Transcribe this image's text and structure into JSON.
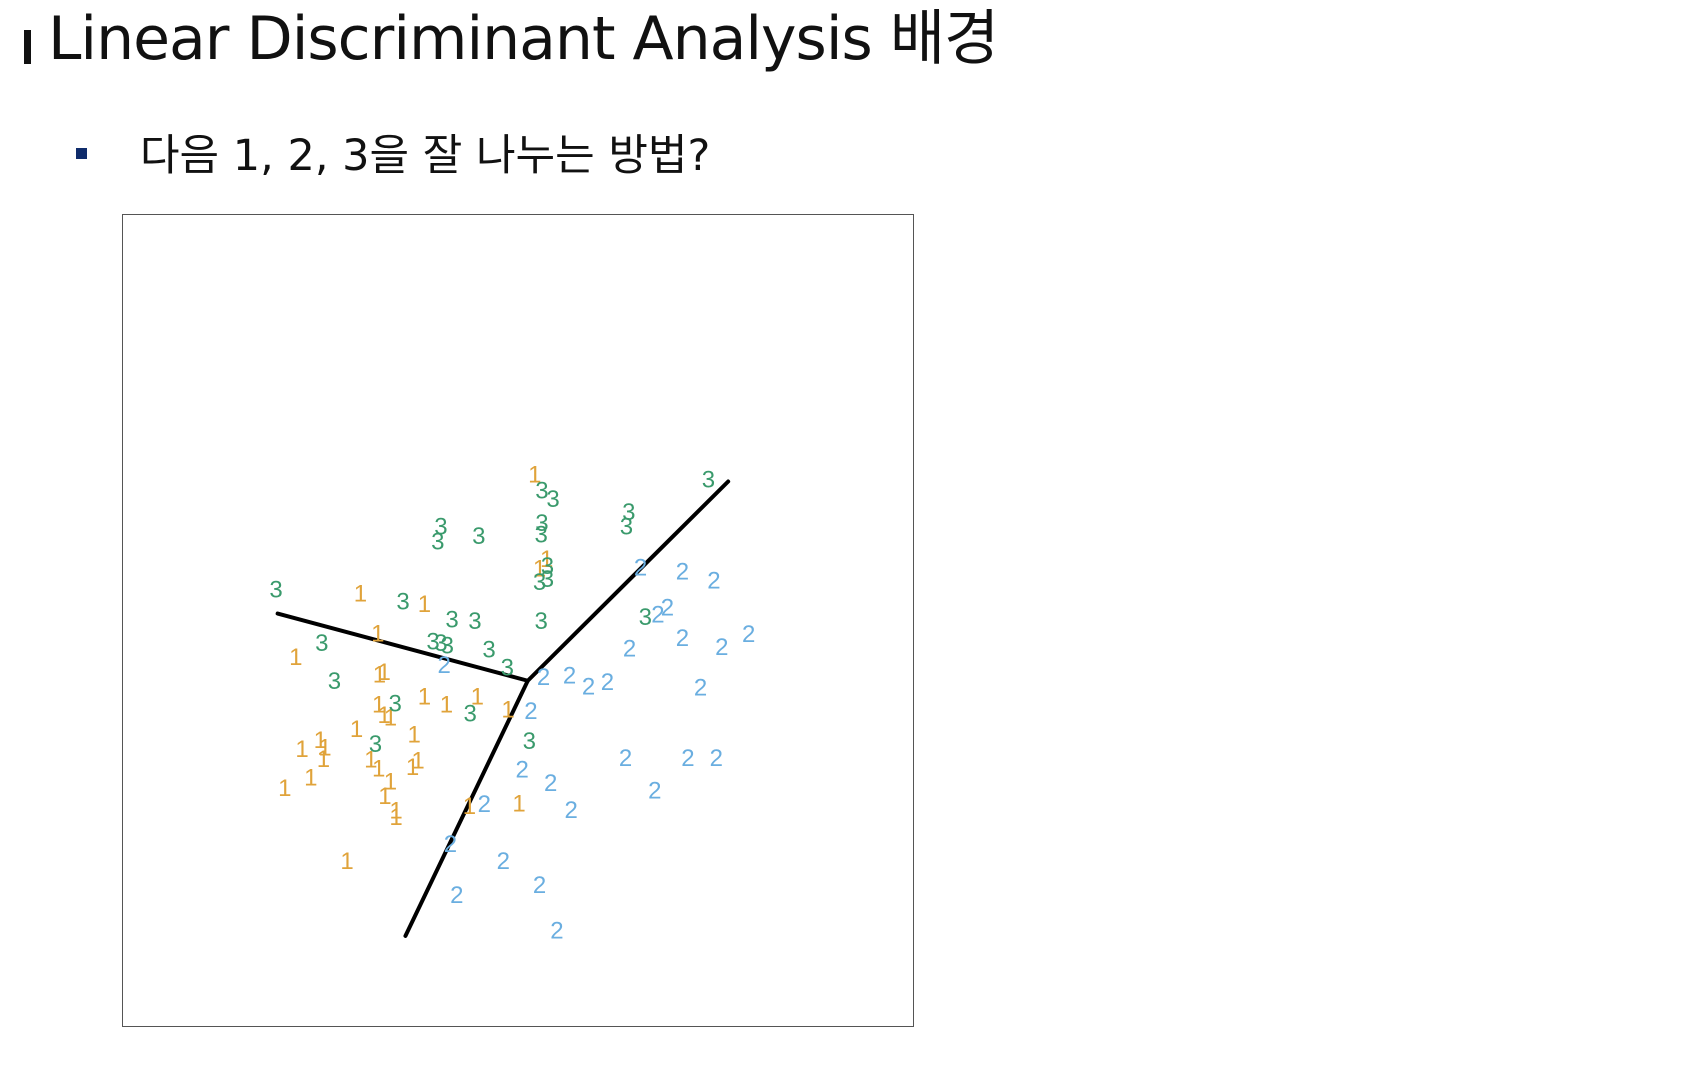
{
  "page": {
    "title": "Linear Discriminant Analysis 배경",
    "bullet": "다음 1, 2, 3을 잘 나누는 방법?"
  },
  "colors": {
    "class_1": "#e0a33a",
    "class_2": "#6aaee0",
    "class_3": "#3a9a6c",
    "boundary": "#000000",
    "bullet": "#0f2c6b"
  },
  "chart_data": {
    "type": "scatter",
    "title": "",
    "xlabel": "",
    "ylabel": "",
    "xlim": [
      0,
      100
    ],
    "ylim": [
      0,
      100
    ],
    "grid": false,
    "axes_visible": false,
    "legend": "none",
    "marker_style": "class label digit",
    "series": [
      {
        "name": "1",
        "label": "1",
        "color": "#e0a33a",
        "points": [
          [
            52.2,
            67.9
          ],
          [
            30.1,
            53.2
          ],
          [
            53.7,
            57.5
          ],
          [
            52.8,
            56.3
          ],
          [
            38.2,
            51.9
          ],
          [
            32.3,
            48.3
          ],
          [
            21.9,
            45.4
          ],
          [
            32.5,
            43.2
          ],
          [
            33.1,
            43.5
          ],
          [
            44.9,
            40.5
          ],
          [
            38.2,
            40.5
          ],
          [
            32.4,
            39.5
          ],
          [
            41.0,
            39.5
          ],
          [
            48.8,
            38.9
          ],
          [
            33.9,
            37.9
          ],
          [
            33.1,
            38.2
          ],
          [
            29.6,
            36.5
          ],
          [
            36.9,
            35.8
          ],
          [
            25.0,
            35.1
          ],
          [
            25.6,
            34.2
          ],
          [
            22.7,
            34.0
          ],
          [
            25.4,
            32.8
          ],
          [
            31.4,
            32.7
          ],
          [
            37.4,
            32.6
          ],
          [
            36.7,
            31.8
          ],
          [
            32.4,
            31.6
          ],
          [
            20.5,
            29.2
          ],
          [
            23.8,
            30.5
          ],
          [
            33.9,
            30.0
          ],
          [
            33.2,
            28.2
          ],
          [
            34.6,
            26.4
          ],
          [
            43.9,
            27.0
          ],
          [
            50.2,
            27.3
          ],
          [
            34.6,
            25.6
          ],
          [
            28.4,
            20.2
          ]
        ]
      },
      {
        "name": "2",
        "label": "2",
        "color": "#6aaee0",
        "points": [
          [
            65.6,
            56.4
          ],
          [
            70.9,
            55.9
          ],
          [
            74.9,
            54.8
          ],
          [
            69.0,
            51.5
          ],
          [
            67.8,
            50.6
          ],
          [
            79.3,
            48.2
          ],
          [
            70.9,
            47.7
          ],
          [
            75.9,
            46.6
          ],
          [
            64.2,
            46.4
          ],
          [
            40.7,
            44.4
          ],
          [
            53.3,
            42.9
          ],
          [
            56.6,
            43.1
          ],
          [
            59.0,
            41.7
          ],
          [
            61.4,
            42.3
          ],
          [
            73.2,
            41.6
          ],
          [
            51.7,
            38.7
          ],
          [
            63.7,
            32.9
          ],
          [
            71.6,
            32.9
          ],
          [
            75.2,
            32.9
          ],
          [
            50.6,
            31.5
          ],
          [
            54.2,
            29.8
          ],
          [
            67.4,
            28.9
          ],
          [
            45.8,
            27.2
          ],
          [
            56.8,
            26.5
          ],
          [
            41.5,
            22.3
          ],
          [
            48.2,
            20.2
          ],
          [
            52.8,
            17.2
          ],
          [
            42.3,
            16.0
          ],
          [
            55.0,
            11.6
          ]
        ]
      },
      {
        "name": "3",
        "label": "3",
        "color": "#3a9a6c",
        "points": [
          [
            74.2,
            67.3
          ],
          [
            53.1,
            65.9
          ],
          [
            54.5,
            64.9
          ],
          [
            64.1,
            63.3
          ],
          [
            53.1,
            61.9
          ],
          [
            63.8,
            61.5
          ],
          [
            40.3,
            61.5
          ],
          [
            45.1,
            60.3
          ],
          [
            53.0,
            60.5
          ],
          [
            39.9,
            59.6
          ],
          [
            53.8,
            56.6
          ],
          [
            52.8,
            54.6
          ],
          [
            53.8,
            55.0
          ],
          [
            19.4,
            53.7
          ],
          [
            35.5,
            52.2
          ],
          [
            66.2,
            50.3
          ],
          [
            41.7,
            50.0
          ],
          [
            44.6,
            49.8
          ],
          [
            53.0,
            49.8
          ],
          [
            25.2,
            47.1
          ],
          [
            39.3,
            47.3
          ],
          [
            40.3,
            47.1
          ],
          [
            41.1,
            46.8
          ],
          [
            46.4,
            46.3
          ],
          [
            48.7,
            44.1
          ],
          [
            26.8,
            42.4
          ],
          [
            34.5,
            39.6
          ],
          [
            44.0,
            38.4
          ],
          [
            51.5,
            35.0
          ],
          [
            32.0,
            34.6
          ]
        ]
      }
    ],
    "boundaries": [
      {
        "name": "boundary-left",
        "from": [
          19.6,
          50.8
        ],
        "to": [
          51.3,
          42.5
        ]
      },
      {
        "name": "boundary-upper-right",
        "from": [
          51.3,
          42.5
        ],
        "to": [
          76.7,
          67.1
        ]
      },
      {
        "name": "boundary-lower",
        "from": [
          51.3,
          42.5
        ],
        "to": [
          35.8,
          11.0
        ]
      }
    ]
  }
}
